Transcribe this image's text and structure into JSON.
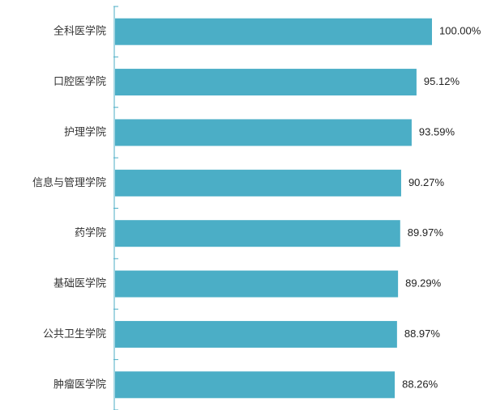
{
  "chart_data": {
    "type": "bar",
    "orientation": "horizontal",
    "title": "",
    "xlabel": "",
    "ylabel": "",
    "categories": [
      "全科医学院",
      "口腔医学院",
      "护理学院",
      "信息与管理学院",
      "药学院",
      "基础医学院",
      "公共卫生学院",
      "肿瘤医学院"
    ],
    "values": [
      100.0,
      95.12,
      93.59,
      90.27,
      89.97,
      89.29,
      88.97,
      88.26
    ],
    "value_labels": [
      "100.00%",
      "95.12%",
      "93.59%",
      "90.27%",
      "89.97%",
      "89.29%",
      "88.97%",
      "88.26%"
    ],
    "xlim": [
      0,
      100
    ],
    "grid": false,
    "legend": "none",
    "colors": {
      "bar": "#4BAEC6",
      "axis": "#4BAEC6"
    }
  }
}
